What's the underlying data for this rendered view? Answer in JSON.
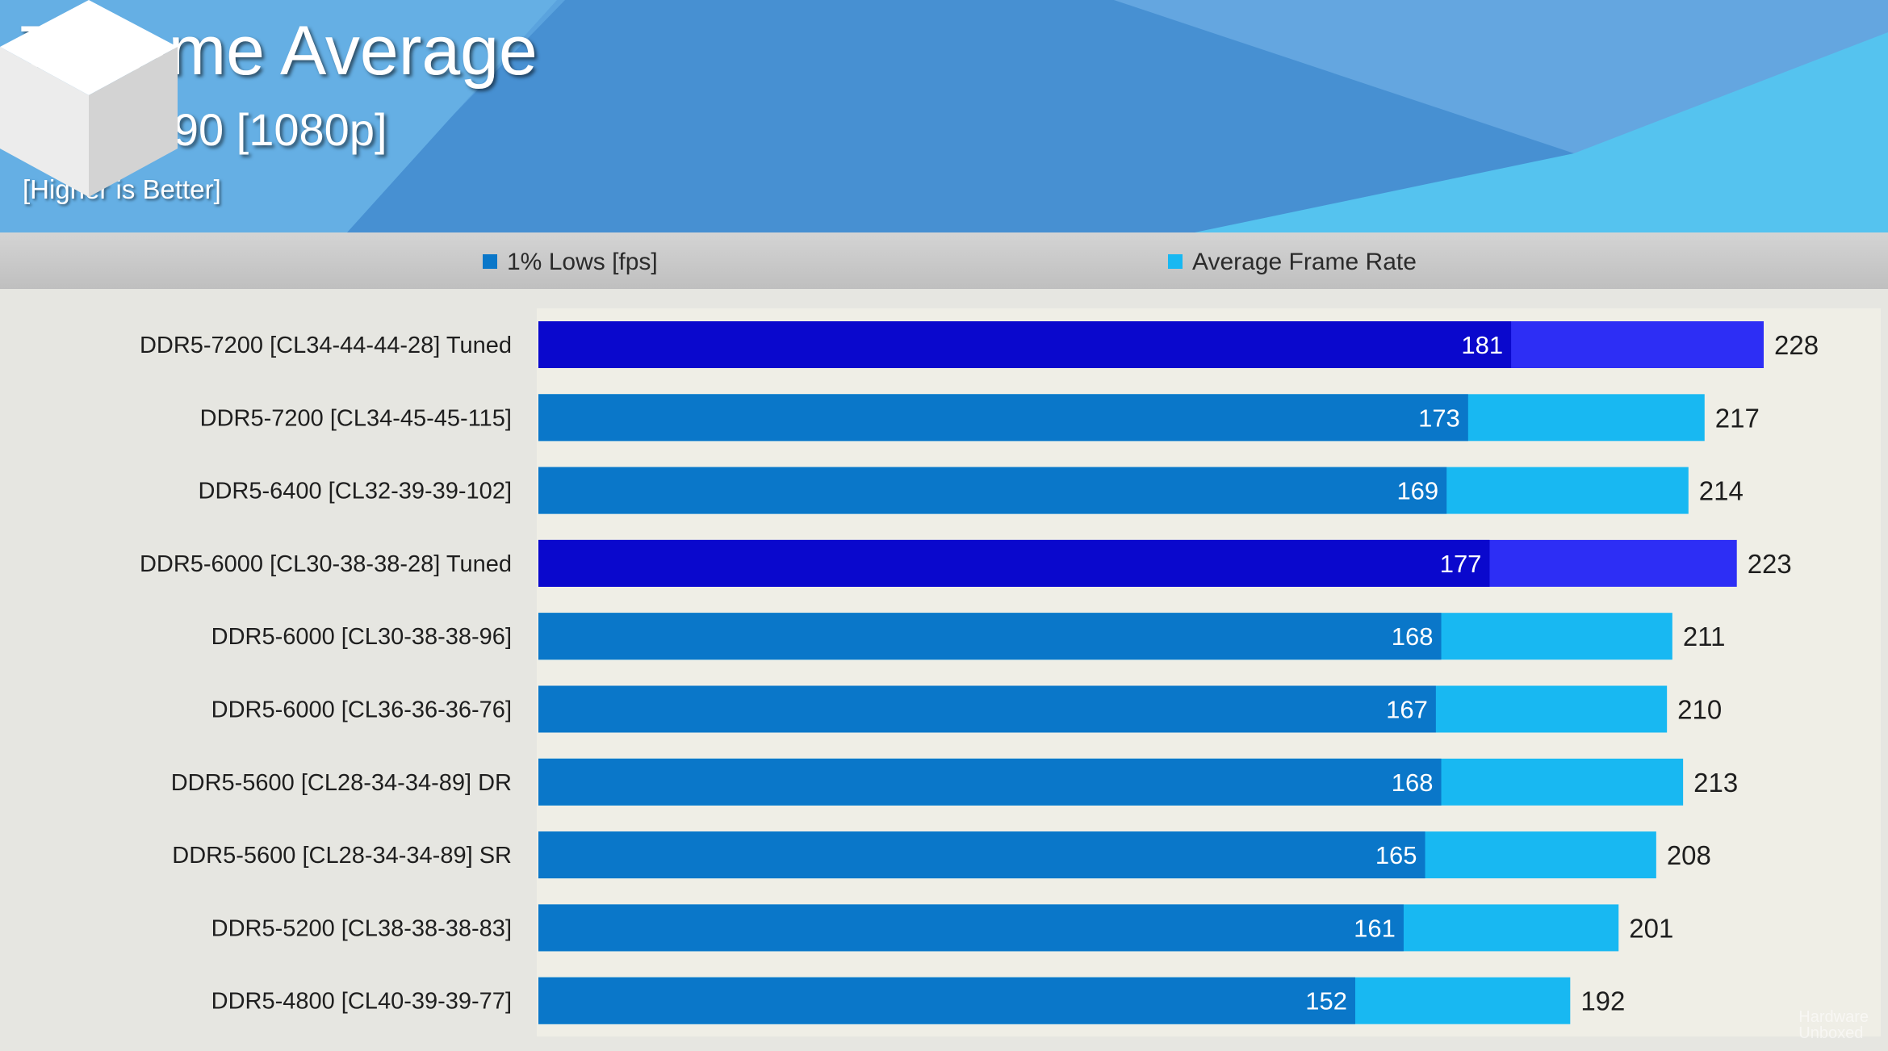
{
  "header": {
    "title": "7 Game Average",
    "subtitle": "RTX 4090 [1080p]",
    "note": "[Higher is Better]",
    "watermark_line1": "Hardware",
    "watermark_line2": "Unboxed"
  },
  "logo": {
    "icon": "cube-logo-icon"
  },
  "colors": {
    "low_normal": "#0a77c9",
    "avg_normal": "#18b8f2",
    "low_tuned": "#0a08cd",
    "avg_tuned": "#2d2ef5",
    "header_blue": "#3f8fd0",
    "plot_background": "#efeee6"
  },
  "legend": {
    "low_label": "1% Lows [fps]",
    "avg_label": "Average Frame Rate"
  },
  "chart_data": {
    "type": "bar",
    "orientation": "horizontal",
    "title": "7 Game Average",
    "subtitle": "RTX 4090 [1080p]",
    "categories": [
      "DDR5-7200 [CL34-44-44-28] Tuned",
      "DDR5-7200 [CL34-45-45-115]",
      "DDR5-6400 [CL32-39-39-102]",
      "DDR5-6000 [CL30-38-38-28] Tuned",
      "DDR5-6000 [CL30-38-38-96]",
      "DDR5-6000 [CL36-36-36-76]",
      "DDR5-5600 [CL28-34-34-89] DR",
      "DDR5-5600 [CL28-34-34-89] SR",
      "DDR5-5200 [CL38-38-38-83]",
      "DDR5-4800 [CL40-39-39-77]"
    ],
    "highlighted": [
      true,
      false,
      false,
      true,
      false,
      false,
      false,
      false,
      false,
      false
    ],
    "series": [
      {
        "name": "1% Lows [fps]",
        "values": [
          181,
          173,
          169,
          177,
          168,
          167,
          168,
          165,
          161,
          152
        ]
      },
      {
        "name": "Average Frame Rate",
        "values": [
          228,
          217,
          214,
          223,
          211,
          210,
          213,
          208,
          201,
          192
        ]
      }
    ],
    "xlim": [
      0,
      228
    ],
    "grid": false,
    "legend_position": "top"
  }
}
